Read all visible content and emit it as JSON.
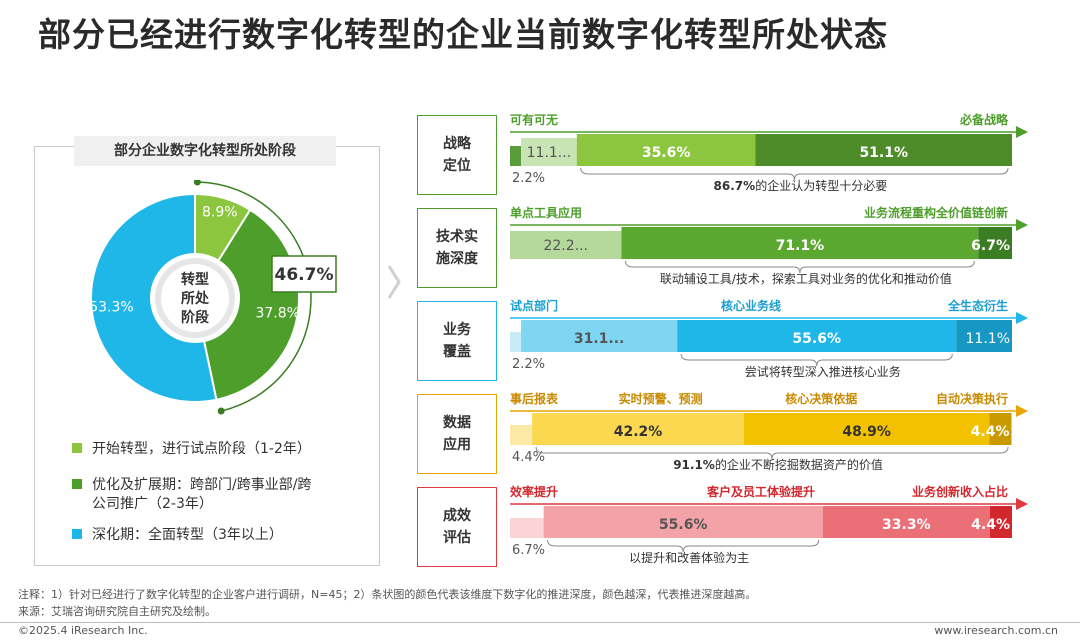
{
  "title": "部分已经进行数字化转型的企业当前数字化转型所处状态",
  "left": {
    "panel_title": "部分企业数字化转型所处阶段",
    "center_label": [
      "转型",
      "所处",
      "阶段"
    ],
    "callout": "46.7%",
    "legend": [
      {
        "lines": [
          "开始转型，进行试点阶段（1-2年）"
        ],
        "color": "#8cc63f"
      },
      {
        "lines": [
          "优化及扩展期：跨部门/跨事业部/跨",
          "公司推广（2-3年）"
        ],
        "color": "#4e9e2c"
      },
      {
        "lines": [
          "深化期：全面转型（3年以上）"
        ],
        "color": "#1fb7e8"
      }
    ]
  },
  "notes": {
    "line1": "注释：1）针对已经进行了数字化转型的企业客户进行调研，N=45；2）条状图的颜色代表该维度下数字化的推进深度，颜色越深，代表推进深度越高。",
    "line2": "来源：艾瑞咨询研究院自主研究及绘制。",
    "copyright": "©2025.4 iResearch Inc.",
    "website": "www.iresearch.com.cn"
  },
  "chart_data": [
    {
      "type": "pie",
      "title": "部分企业数字化转型所处阶段",
      "categories": [
        "开始转型，进行试点阶段（1-2年）",
        "优化及扩展期：跨部门/跨事业部/跨公司推广（2-3年）",
        "深化期：全面转型（3年以上）"
      ],
      "values": [
        8.9,
        37.8,
        53.3
      ],
      "labels": [
        "8.9%",
        "37.8%",
        "53.3%"
      ],
      "colors": [
        "#8cc63f",
        "#4e9e2c",
        "#1fb7e8"
      ],
      "annotation": "46.7%"
    },
    {
      "type": "bar",
      "stacked": true,
      "orientation": "horizontal",
      "xlim": [
        0,
        100
      ],
      "rows": [
        {
          "category": [
            "战略",
            "定位"
          ],
          "scale": [
            "可有可无",
            "必备战略"
          ],
          "arrow_color": "#4e9e2c",
          "scale_color": "#4e9e2c",
          "note_prefix": "86.7%",
          "note_rest": "的企业认为转型十分必要",
          "segments": [
            {
              "value": 2.2,
              "label": "2.2%",
              "color": "#5b9b3a",
              "label_pos": "below-left"
            },
            {
              "value": 11.1,
              "label": "11.1...",
              "color": "#c8e3b4",
              "label_pos": "inside"
            },
            {
              "value": 35.6,
              "label": "35.6%",
              "color": "#8cc63f",
              "label_pos": "inside"
            },
            {
              "value": 51.1,
              "label": "51.1%",
              "color": "#4e8c2a",
              "label_pos": "inside"
            }
          ],
          "brace": [
            13.3,
            100
          ]
        },
        {
          "category": [
            "技术实",
            "施深度"
          ],
          "scale": [
            "单点工具应用",
            "业务流程重构全价值链创新"
          ],
          "arrow_color": "#4e9e2c",
          "scale_color": "#4e9e2c",
          "note_prefix": "",
          "note_rest": "联动辅设工具/技术，探索工具对业务的优化和推动价值",
          "segments": [
            {
              "value": 22.2,
              "label": "22.2...",
              "color": "#b5d99b",
              "label_pos": "inside"
            },
            {
              "value": 71.1,
              "label": "71.1%",
              "color": "#5ba830",
              "label_pos": "inside"
            },
            {
              "value": 6.7,
              "label": "6.7%",
              "color": "#3b7d22",
              "label_pos": "inside"
            }
          ],
          "brace": [
            22.2,
            93.3
          ]
        },
        {
          "category": [
            "业务",
            "覆盖"
          ],
          "scale": [
            "试点部门",
            "核心业务线",
            "全生态衍生"
          ],
          "arrow_color": "#1fb7e8",
          "scale_color": "#1a9fd0",
          "note_prefix": "",
          "note_rest": "尝试将转型深入推进核心业务",
          "segments": [
            {
              "value": 2.2,
              "label": "2.2%",
              "color": "#c6ecf8",
              "label_pos": "below-left"
            },
            {
              "value": 31.1,
              "label": "31.1...",
              "color": "#7ed6f2",
              "label_pos": "inside"
            },
            {
              "value": 55.6,
              "label": "55.6%",
              "color": "#1fb7e8",
              "label_pos": "inside"
            },
            {
              "value": 11.1,
              "label": "11.1%",
              "color": "#1797c4",
              "label_pos": "inside"
            }
          ],
          "brace": [
            33.3,
            88.9
          ]
        },
        {
          "category": [
            "数据",
            "应用"
          ],
          "scale": [
            "事后报表",
            "实时预警、预测",
            "核心决策依据",
            "自动决策执行"
          ],
          "arrow_color": "#e8a400",
          "scale_color": "#c98a00",
          "note_prefix": "91.1%",
          "note_rest": "的企业不断挖掘数据资产的价值",
          "segments": [
            {
              "value": 4.4,
              "label": "4.4%",
              "color": "#fde9a6",
              "label_pos": "below-left"
            },
            {
              "value": 42.2,
              "label": "42.2%",
              "color": "#fbd850",
              "label_pos": "inside"
            },
            {
              "value": 48.9,
              "label": "48.9%",
              "color": "#f2c200",
              "label_pos": "inside"
            },
            {
              "value": 4.4,
              "label": "4.4%",
              "color": "#c99a00",
              "label_pos": "inside"
            }
          ],
          "brace": [
            4.4,
            100
          ]
        },
        {
          "category": [
            "成效",
            "评估"
          ],
          "scale": [
            "效率提升",
            "客户及员工体验提升",
            "业务创新收入占比"
          ],
          "arrow_color": "#e0393e",
          "scale_color": "#d3272e",
          "note_prefix": "",
          "note_rest": "以提升和改善体验为主",
          "segments": [
            {
              "value": 6.7,
              "label": "6.7%",
              "color": "#fad4d6",
              "label_pos": "below-left"
            },
            {
              "value": 55.6,
              "label": "55.6%",
              "color": "#f3a3a8",
              "label_pos": "inside"
            },
            {
              "value": 33.3,
              "label": "33.3%",
              "color": "#ea6f76",
              "label_pos": "inside"
            },
            {
              "value": 4.4,
              "label": "4.4%",
              "color": "#d3272e",
              "label_pos": "inside"
            }
          ],
          "brace": [
            6.7,
            62.3
          ]
        }
      ]
    }
  ]
}
